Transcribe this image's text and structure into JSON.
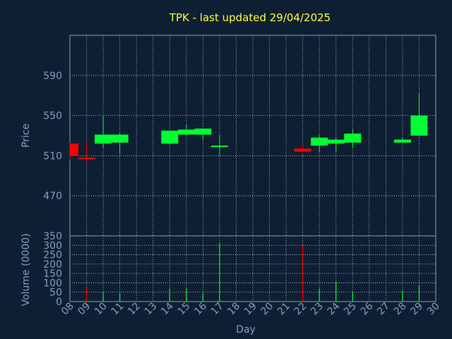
{
  "colors": {
    "background": "#0f1f33",
    "title": "#ffff33",
    "axis_text": "#7f9fc0",
    "grid": "#c8d2dc",
    "up": "#00ff33",
    "down": "#ff0000",
    "frame": "#7f9fc0"
  },
  "chart_data": [
    {
      "type": "candlestick",
      "title": "TPK - last updated 29/04/2025",
      "xlabel": "",
      "ylabel": "Price",
      "ylim": [
        430,
        630
      ],
      "yticks": [
        470,
        510,
        550,
        590
      ],
      "grid": true,
      "x": [
        "08",
        "09",
        "10",
        "11",
        "14",
        "15",
        "16",
        "17",
        "22",
        "23",
        "24",
        "25",
        "28",
        "29"
      ],
      "open": [
        522,
        508,
        522,
        523,
        522,
        531,
        531,
        520,
        517,
        520,
        522,
        523,
        523,
        530
      ],
      "high": [
        523,
        523,
        549,
        533,
        535,
        541,
        537,
        530,
        521,
        531,
        528,
        536,
        528,
        573
      ],
      "low": [
        505,
        504,
        518,
        512,
        521,
        530,
        526,
        510,
        513,
        513,
        514,
        518,
        523,
        529
      ],
      "close": [
        510,
        507,
        531,
        531,
        535,
        536,
        537,
        520,
        514,
        528,
        526,
        532,
        526,
        550
      ]
    },
    {
      "type": "bar",
      "xlabel": "Day",
      "ylabel": "Volume (0000)",
      "ylim": [
        0,
        350
      ],
      "yticks": [
        0,
        50,
        100,
        150,
        200,
        250,
        300,
        350
      ],
      "grid": true,
      "categories": [
        "08",
        "09",
        "10",
        "11",
        "12",
        "13",
        "14",
        "15",
        "16",
        "17",
        "18",
        "19",
        "20",
        "21",
        "22",
        "23",
        "24",
        "25",
        "26",
        "27",
        "28",
        "29",
        "30"
      ],
      "values": [
        0,
        0,
        0,
        0,
        0,
        0,
        0,
        0,
        0,
        310,
        0,
        0,
        0,
        0,
        300,
        0,
        0,
        0,
        0,
        0,
        0,
        0,
        0
      ],
      "day_values": {
        "08": 0,
        "09": 75,
        "10": 50,
        "11": 45,
        "14": 70,
        "15": 70,
        "16": 45,
        "17": 310,
        "22": 300,
        "23": 70,
        "24": 105,
        "25": 50,
        "28": 60,
        "29": 90
      }
    }
  ]
}
